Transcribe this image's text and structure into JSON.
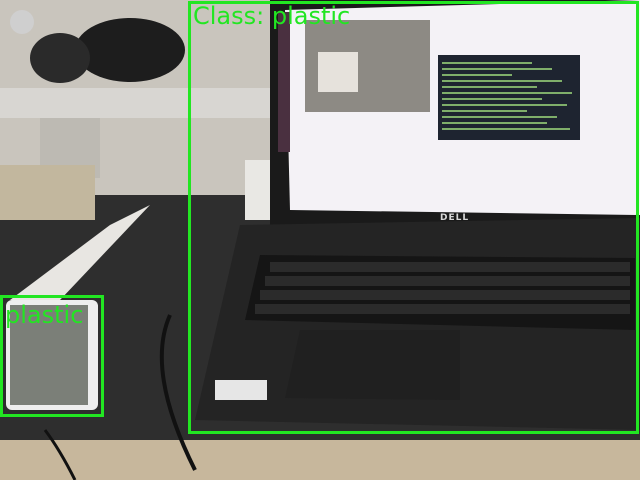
{
  "detections": [
    {
      "label": "Class: plastic"
    },
    {
      "label": "plastic"
    }
  ],
  "laptop_brand": "DELL",
  "colors": {
    "box": "#22e622",
    "desk": "#3a3a3a",
    "wall": "#c9c5bd",
    "screen": "#f4f2f6",
    "terminal": "#1e2430"
  }
}
